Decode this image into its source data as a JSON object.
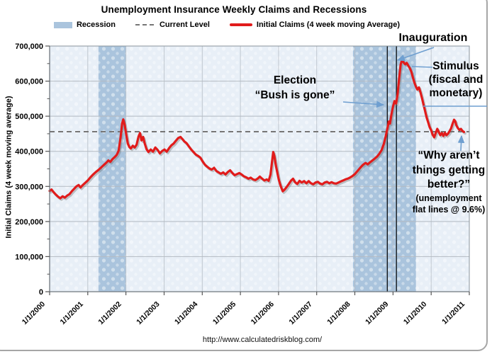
{
  "title": "Unemployment Insurance Weekly Claims and Recessions",
  "legend": [
    {
      "label": "Recession",
      "type": "patch"
    },
    {
      "label": "Current Level",
      "type": "dashed"
    },
    {
      "label": "Initial Claims (4 week moving Average)",
      "type": "line"
    }
  ],
  "y_axis": {
    "title": "Initial Claims (4 week moving average)"
  },
  "footer": "http://www.calculatedriskblog.com/",
  "annotations": {
    "inauguration": "Inauguration",
    "stimulus_lines": [
      "Stimulus",
      "(fiscal and",
      "monetary)"
    ],
    "election_lines": [
      "Election",
      "“Bush is gone”"
    ],
    "why_lines": [
      "“Why aren’t",
      "things getting",
      "better?”"
    ],
    "why_sub_lines": [
      "(unemployment",
      "flat lines @ 9.6%)"
    ]
  },
  "colors": {
    "line": "#e11b1b",
    "recession_band": "#aac4dd",
    "plot_bg": "#e8eff7",
    "gridline": "#b3bac2",
    "dashed": "#767676",
    "event_line": "#000000",
    "arrow": "#6f9fd0",
    "axis": "#8b949c"
  },
  "chart_data": {
    "type": "line",
    "title": "Unemployment Insurance Weekly Claims and Recessions",
    "xlabel": "",
    "ylabel": "Initial Claims (4 week moving average)",
    "x_range": [
      2000,
      2011
    ],
    "y_range": [
      0,
      700000
    ],
    "grid": true,
    "legend_position": "top",
    "x_tick_labels": [
      "1/1/2000",
      "1/1/2001",
      "1/1/2002",
      "1/1/2003",
      "1/1/2004",
      "1/1/2005",
      "1/1/2006",
      "1/1/2007",
      "1/1/2008",
      "1/1/2009",
      "1/1/2010",
      "1/1/2011"
    ],
    "y_tick_values": [
      0,
      100000,
      200000,
      300000,
      400000,
      500000,
      600000,
      700000
    ],
    "y_tick_labels": [
      "0",
      "100,000",
      "200,000",
      "300,000",
      "400,000",
      "500,000",
      "600,000",
      "700,000"
    ],
    "current_level": 456000,
    "recessions": [
      [
        2001.28,
        2002.0
      ],
      [
        2007.95,
        2009.6
      ]
    ],
    "event_lines": [
      {
        "label": "Election",
        "x": 2008.85
      },
      {
        "label": "Inauguration",
        "x": 2009.09
      }
    ],
    "series": [
      {
        "name": "Initial Claims (4 week moving Average)",
        "color": "#e11b1b",
        "points": [
          [
            2000.0,
            287000
          ],
          [
            2000.05,
            291000
          ],
          [
            2000.1,
            284000
          ],
          [
            2000.16,
            277000
          ],
          [
            2000.22,
            271000
          ],
          [
            2000.28,
            266000
          ],
          [
            2000.34,
            272000
          ],
          [
            2000.4,
            268000
          ],
          [
            2000.46,
            274000
          ],
          [
            2000.52,
            278000
          ],
          [
            2000.58,
            286000
          ],
          [
            2000.64,
            293000
          ],
          [
            2000.7,
            300000
          ],
          [
            2000.76,
            304000
          ],
          [
            2000.81,
            297000
          ],
          [
            2000.86,
            303000
          ],
          [
            2000.93,
            310000
          ],
          [
            2001.0,
            317000
          ],
          [
            2001.07,
            326000
          ],
          [
            2001.14,
            334000
          ],
          [
            2001.21,
            341000
          ],
          [
            2001.28,
            347000
          ],
          [
            2001.35,
            354000
          ],
          [
            2001.42,
            361000
          ],
          [
            2001.49,
            368000
          ],
          [
            2001.54,
            374000
          ],
          [
            2001.59,
            370000
          ],
          [
            2001.64,
            377000
          ],
          [
            2001.7,
            383000
          ],
          [
            2001.76,
            390000
          ],
          [
            2001.81,
            402000
          ],
          [
            2001.86,
            440000
          ],
          [
            2001.9,
            480000
          ],
          [
            2001.93,
            491000
          ],
          [
            2001.97,
            474000
          ],
          [
            2002.01,
            446000
          ],
          [
            2002.05,
            422000
          ],
          [
            2002.09,
            412000
          ],
          [
            2002.13,
            408000
          ],
          [
            2002.18,
            416000
          ],
          [
            2002.23,
            411000
          ],
          [
            2002.28,
            419000
          ],
          [
            2002.33,
            442000
          ],
          [
            2002.37,
            452000
          ],
          [
            2002.41,
            431000
          ],
          [
            2002.45,
            441000
          ],
          [
            2002.49,
            423000
          ],
          [
            2002.54,
            406000
          ],
          [
            2002.59,
            398000
          ],
          [
            2002.65,
            405000
          ],
          [
            2002.71,
            399000
          ],
          [
            2002.77,
            411000
          ],
          [
            2002.83,
            404000
          ],
          [
            2002.89,
            394000
          ],
          [
            2002.95,
            401000
          ],
          [
            2003.01,
            405000
          ],
          [
            2003.07,
            399000
          ],
          [
            2003.13,
            409000
          ],
          [
            2003.19,
            417000
          ],
          [
            2003.25,
            422000
          ],
          [
            2003.31,
            430000
          ],
          [
            2003.37,
            438000
          ],
          [
            2003.43,
            441000
          ],
          [
            2003.48,
            435000
          ],
          [
            2003.53,
            428000
          ],
          [
            2003.59,
            423000
          ],
          [
            2003.65,
            414000
          ],
          [
            2003.71,
            405000
          ],
          [
            2003.77,
            398000
          ],
          [
            2003.83,
            391000
          ],
          [
            2003.89,
            387000
          ],
          [
            2003.95,
            382000
          ],
          [
            2004.01,
            371000
          ],
          [
            2004.07,
            362000
          ],
          [
            2004.13,
            356000
          ],
          [
            2004.19,
            351000
          ],
          [
            2004.25,
            348000
          ],
          [
            2004.31,
            353000
          ],
          [
            2004.37,
            344000
          ],
          [
            2004.43,
            340000
          ],
          [
            2004.49,
            336000
          ],
          [
            2004.55,
            340000
          ],
          [
            2004.61,
            334000
          ],
          [
            2004.67,
            341000
          ],
          [
            2004.73,
            346000
          ],
          [
            2004.79,
            338000
          ],
          [
            2004.85,
            332000
          ],
          [
            2004.91,
            335000
          ],
          [
            2004.97,
            338000
          ],
          [
            2005.03,
            334000
          ],
          [
            2005.09,
            329000
          ],
          [
            2005.15,
            326000
          ],
          [
            2005.21,
            322000
          ],
          [
            2005.27,
            325000
          ],
          [
            2005.33,
            320000
          ],
          [
            2005.39,
            318000
          ],
          [
            2005.45,
            322000
          ],
          [
            2005.51,
            328000
          ],
          [
            2005.57,
            322000
          ],
          [
            2005.63,
            317000
          ],
          [
            2005.69,
            320000
          ],
          [
            2005.74,
            316000
          ],
          [
            2005.79,
            334000
          ],
          [
            2005.83,
            372000
          ],
          [
            2005.86,
            398000
          ],
          [
            2005.89,
            387000
          ],
          [
            2005.93,
            360000
          ],
          [
            2005.97,
            338000
          ],
          [
            2006.01,
            318000
          ],
          [
            2006.06,
            300000
          ],
          [
            2006.11,
            286000
          ],
          [
            2006.16,
            291000
          ],
          [
            2006.21,
            298000
          ],
          [
            2006.27,
            307000
          ],
          [
            2006.33,
            317000
          ],
          [
            2006.38,
            322000
          ],
          [
            2006.43,
            312000
          ],
          [
            2006.49,
            307000
          ],
          [
            2006.55,
            316000
          ],
          [
            2006.61,
            311000
          ],
          [
            2006.67,
            315000
          ],
          [
            2006.73,
            309000
          ],
          [
            2006.79,
            315000
          ],
          [
            2006.85,
            309000
          ],
          [
            2006.91,
            306000
          ],
          [
            2006.97,
            311000
          ],
          [
            2007.03,
            313000
          ],
          [
            2007.09,
            308000
          ],
          [
            2007.15,
            306000
          ],
          [
            2007.21,
            311000
          ],
          [
            2007.27,
            313000
          ],
          [
            2007.33,
            309000
          ],
          [
            2007.39,
            312000
          ],
          [
            2007.45,
            309000
          ],
          [
            2007.51,
            308000
          ],
          [
            2007.57,
            311000
          ],
          [
            2007.63,
            314000
          ],
          [
            2007.69,
            317000
          ],
          [
            2007.75,
            320000
          ],
          [
            2007.81,
            322000
          ],
          [
            2007.87,
            325000
          ],
          [
            2007.93,
            329000
          ],
          [
            2008.0,
            335000
          ],
          [
            2008.07,
            344000
          ],
          [
            2008.14,
            353000
          ],
          [
            2008.21,
            361000
          ],
          [
            2008.28,
            367000
          ],
          [
            2008.34,
            363000
          ],
          [
            2008.4,
            369000
          ],
          [
            2008.46,
            374000
          ],
          [
            2008.52,
            379000
          ],
          [
            2008.58,
            385000
          ],
          [
            2008.64,
            393000
          ],
          [
            2008.7,
            403000
          ],
          [
            2008.76,
            421000
          ],
          [
            2008.81,
            443000
          ],
          [
            2008.86,
            468000
          ],
          [
            2008.89,
            485000
          ],
          [
            2008.92,
            479000
          ],
          [
            2008.96,
            506000
          ],
          [
            2009.0,
            528000
          ],
          [
            2009.04,
            543000
          ],
          [
            2009.08,
            536000
          ],
          [
            2009.12,
            562000
          ],
          [
            2009.16,
            608000
          ],
          [
            2009.2,
            647000
          ],
          [
            2009.24,
            662000
          ],
          [
            2009.28,
            653000
          ],
          [
            2009.32,
            648000
          ],
          [
            2009.36,
            652000
          ],
          [
            2009.4,
            644000
          ],
          [
            2009.44,
            637000
          ],
          [
            2009.48,
            627000
          ],
          [
            2009.52,
            611000
          ],
          [
            2009.56,
            596000
          ],
          [
            2009.6,
            584000
          ],
          [
            2009.64,
            576000
          ],
          [
            2009.68,
            582000
          ],
          [
            2009.72,
            568000
          ],
          [
            2009.76,
            551000
          ],
          [
            2009.8,
            533000
          ],
          [
            2009.84,
            515000
          ],
          [
            2009.88,
            497000
          ],
          [
            2009.92,
            483000
          ],
          [
            2009.96,
            469000
          ],
          [
            2010.0,
            460000
          ],
          [
            2010.04,
            447000
          ],
          [
            2010.08,
            440000
          ],
          [
            2010.12,
            452000
          ],
          [
            2010.16,
            464000
          ],
          [
            2010.2,
            455000
          ],
          [
            2010.24,
            446000
          ],
          [
            2010.28,
            452000
          ],
          [
            2010.32,
            444000
          ],
          [
            2010.36,
            453000
          ],
          [
            2010.4,
            446000
          ],
          [
            2010.44,
            450000
          ],
          [
            2010.48,
            457000
          ],
          [
            2010.52,
            465000
          ],
          [
            2010.56,
            478000
          ],
          [
            2010.6,
            490000
          ],
          [
            2010.63,
            486000
          ],
          [
            2010.66,
            474000
          ],
          [
            2010.7,
            466000
          ],
          [
            2010.74,
            461000
          ],
          [
            2010.78,
            464000
          ],
          [
            2010.82,
            458000
          ],
          [
            2010.86,
            455000
          ]
        ]
      }
    ]
  }
}
